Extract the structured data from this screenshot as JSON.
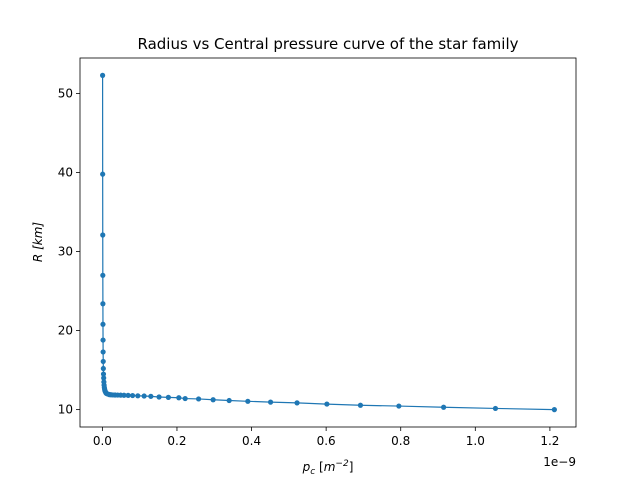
{
  "chart_data": {
    "type": "line",
    "title": "Radius vs Central pressure curve of the star family",
    "xlabel_var": "p",
    "xlabel_sub": "c",
    "xlabel_unit_prefix": " [",
    "xlabel_unit_base": "m",
    "xlabel_unit_exp": "−2",
    "xlabel_unit_suffix": "]",
    "ylabel": "R [km]",
    "x_offset_label": "1e−9",
    "xlim": [
      -0.06,
      1.27
    ],
    "ylim": [
      7.8,
      54.5
    ],
    "x_ticks": [
      0.0,
      0.2,
      0.4,
      0.6,
      0.8,
      1.0,
      1.2
    ],
    "x_tick_labels": [
      "0.0",
      "0.2",
      "0.4",
      "0.6",
      "0.8",
      "1.0",
      "1.2"
    ],
    "y_ticks": [
      10,
      20,
      30,
      40,
      50
    ],
    "y_tick_labels": [
      "10",
      "20",
      "30",
      "40",
      "50"
    ],
    "grid": false,
    "series_color": "#1f77b4",
    "marker": "circle",
    "x": [
      0.0006,
      0.0008,
      0.001,
      0.0012,
      0.0014,
      0.0016,
      0.0018,
      0.002,
      0.0023,
      0.0026,
      0.003,
      0.0035,
      0.004,
      0.0046,
      0.0053,
      0.006,
      0.0068,
      0.0077,
      0.0087,
      0.0098,
      0.011,
      0.013,
      0.016,
      0.019,
      0.023,
      0.028,
      0.034,
      0.041,
      0.049,
      0.058,
      0.069,
      0.081,
      0.095,
      0.112,
      0.13,
      0.152,
      0.177,
      0.205,
      0.222,
      0.258,
      0.297,
      0.34,
      0.39,
      0.451,
      0.522,
      0.602,
      0.692,
      0.795,
      0.915,
      1.054,
      1.212
    ],
    "y": [
      52.3,
      39.8,
      32.1,
      27.0,
      23.4,
      20.8,
      18.8,
      17.3,
      16.1,
      15.2,
      14.5,
      14.0,
      13.5,
      13.1,
      12.8,
      12.6,
      12.4,
      12.3,
      12.2,
      12.1,
      12.05,
      12.0,
      11.95,
      11.9,
      11.88,
      11.86,
      11.85,
      11.84,
      11.83,
      11.82,
      11.8,
      11.78,
      11.75,
      11.72,
      11.68,
      11.6,
      11.55,
      11.5,
      11.4,
      11.35,
      11.25,
      11.15,
      11.05,
      10.95,
      10.85,
      10.7,
      10.55,
      10.45,
      10.3,
      10.15,
      10.0
    ]
  }
}
